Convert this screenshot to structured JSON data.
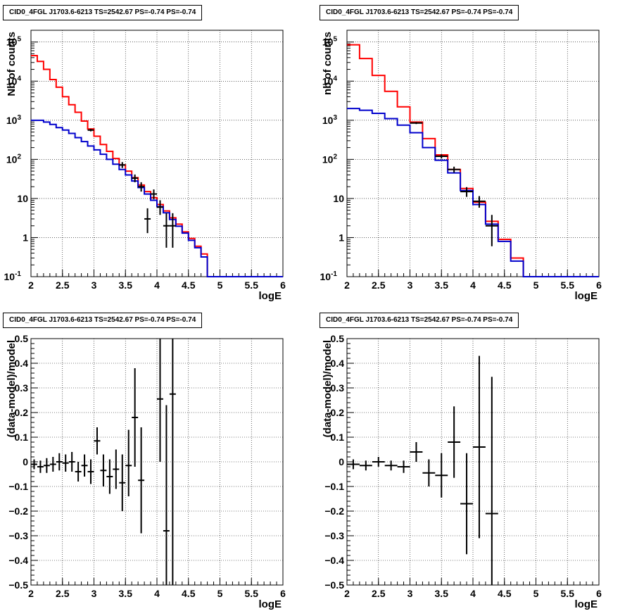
{
  "panels": [
    {
      "id": "counts-left",
      "title": "CID0_4FGL J1703.6-6213 TS=2542.67 PS=-0.74 PS=-0.74",
      "chart_data": {
        "type": "line",
        "yscale": "log",
        "xlabel": "logE",
        "ylabel": "Nb of counts",
        "xlim": [
          2,
          6
        ],
        "ylim": [
          0.1,
          200000
        ],
        "grid": true,
        "x_ticks": [
          "2",
          "2.5",
          "3",
          "3.5",
          "4",
          "4.5",
          "5",
          "5.5",
          "6"
        ],
        "y_ticks": [
          {
            "v": 0.1,
            "b": "10",
            "e": "-1"
          },
          {
            "v": 1,
            "b": "1",
            "e": ""
          },
          {
            "v": 10,
            "b": "10",
            "e": ""
          },
          {
            "v": 100,
            "b": "10",
            "e": "2"
          },
          {
            "v": 1000,
            "b": "10",
            "e": "3"
          },
          {
            "v": 10000,
            "b": "10",
            "e": "4"
          },
          {
            "v": 100000,
            "b": "10",
            "e": "5"
          }
        ],
        "step_width": 0.1,
        "series": [
          {
            "color": "#ff0000",
            "x": [
              2.0,
              2.1,
              2.2,
              2.3,
              2.4,
              2.5,
              2.6,
              2.7,
              2.8,
              2.9,
              3.0,
              3.1,
              3.2,
              3.3,
              3.4,
              3.5,
              3.6,
              3.7,
              3.8,
              3.9,
              4.0,
              4.1,
              4.2,
              4.3,
              4.4,
              4.5,
              4.6,
              4.7,
              4.8,
              4.9,
              5.0,
              5.1,
              5.2,
              5.3,
              5.4,
              5.5,
              5.6,
              5.7,
              5.8,
              5.9
            ],
            "y": [
              45000,
              32000,
              20000,
              11000,
              7000,
              4000,
              2500,
              1600,
              950,
              600,
              390,
              240,
              160,
              105,
              72,
              50,
              34,
              22,
              15,
              10.5,
              7,
              4.8,
              3.2,
              2.2,
              1.4,
              0.95,
              0.6,
              0.38,
              0.1,
              0.1,
              0.1,
              0.1,
              0.1,
              0.1,
              0.1,
              0.1,
              0.1,
              0.1,
              0.1,
              0.1
            ]
          },
          {
            "color": "#0000cc",
            "x": [
              2.0,
              2.1,
              2.2,
              2.3,
              2.4,
              2.5,
              2.6,
              2.7,
              2.8,
              2.9,
              3.0,
              3.1,
              3.2,
              3.3,
              3.4,
              3.5,
              3.6,
              3.7,
              3.8,
              3.9,
              4.0,
              4.1,
              4.2,
              4.3,
              4.4,
              4.5,
              4.6,
              4.7,
              4.8,
              4.9,
              5.0,
              5.1,
              5.2,
              5.3,
              5.4,
              5.5,
              5.6,
              5.7,
              5.8,
              5.9
            ],
            "y": [
              1000,
              1000,
              900,
              780,
              650,
              560,
              460,
              360,
              285,
              220,
              175,
              135,
              100,
              75,
              55,
              40,
              28,
              19,
              13,
              9,
              6.2,
              4.3,
              2.9,
              1.95,
              1.3,
              0.85,
              0.55,
              0.32,
              0.1,
              0.1,
              0.1,
              0.1,
              0.1,
              0.1,
              0.1,
              0.1,
              0.1,
              0.1,
              0.1,
              0.1
            ]
          }
        ],
        "points": [
          {
            "x": 2.95,
            "y": 560,
            "lo": 520,
            "hi": 600
          },
          {
            "x": 3.45,
            "y": 72,
            "lo": 60,
            "hi": 85
          },
          {
            "x": 3.65,
            "y": 33,
            "lo": 26,
            "hi": 41
          },
          {
            "x": 3.75,
            "y": 20,
            "lo": 15,
            "hi": 26
          },
          {
            "x": 3.85,
            "y": 3,
            "lo": 1.3,
            "hi": 5.6
          },
          {
            "x": 3.95,
            "y": 13,
            "lo": 9.5,
            "hi": 17
          },
          {
            "x": 4.05,
            "y": 6,
            "lo": 3.8,
            "hi": 9
          },
          {
            "x": 4.15,
            "y": 2,
            "lo": 0.55,
            "hi": 4.2
          },
          {
            "x": 4.25,
            "y": 2,
            "lo": 0.55,
            "hi": 4.2
          }
        ],
        "point_halfwidth": 0.05
      }
    },
    {
      "id": "counts-right",
      "title": "CID0_4FGL J1703.6-6213 TS=2542.67 PS=-0.74 PS=-0.74",
      "chart_data": {
        "type": "line",
        "yscale": "log",
        "xlabel": "logE",
        "ylabel": "nb of counts",
        "xlim": [
          2,
          6
        ],
        "ylim": [
          0.1,
          200000
        ],
        "grid": true,
        "x_ticks": [
          "2",
          "2.5",
          "3",
          "3.5",
          "4",
          "4.5",
          "5",
          "5.5",
          "6"
        ],
        "y_ticks": [
          {
            "v": 0.1,
            "b": "10",
            "e": "-1"
          },
          {
            "v": 1,
            "b": "1",
            "e": ""
          },
          {
            "v": 10,
            "b": "10",
            "e": ""
          },
          {
            "v": 100,
            "b": "10",
            "e": "2"
          },
          {
            "v": 1000,
            "b": "10",
            "e": "3"
          },
          {
            "v": 10000,
            "b": "10",
            "e": "4"
          },
          {
            "v": 100000,
            "b": "10",
            "e": "5"
          }
        ],
        "step_width": 0.2,
        "series": [
          {
            "color": "#ff0000",
            "x": [
              2.0,
              2.2,
              2.4,
              2.6,
              2.8,
              3.0,
              3.2,
              3.4,
              3.6,
              3.8,
              4.0,
              4.2,
              4.4,
              4.6,
              4.8,
              5.0,
              5.2,
              5.4,
              5.6,
              5.8
            ],
            "y": [
              85000,
              38000,
              14000,
              5500,
              2200,
              900,
              340,
              130,
              55,
              18,
              8,
              2.6,
              0.9,
              0.3,
              0.1,
              0.1,
              0.1,
              0.1,
              0.1,
              0.1
            ]
          },
          {
            "color": "#0000cc",
            "x": [
              2.0,
              2.2,
              2.4,
              2.6,
              2.8,
              3.0,
              3.2,
              3.4,
              3.6,
              3.8,
              4.0,
              4.2,
              4.4,
              4.6,
              4.8,
              5.0,
              5.2,
              5.4,
              5.6,
              5.8
            ],
            "y": [
              2000,
              1800,
              1500,
              1100,
              750,
              480,
              200,
              95,
              45,
              16,
              7,
              2.2,
              0.8,
              0.25,
              0.1,
              0.1,
              0.1,
              0.1,
              0.1,
              0.1
            ]
          }
        ],
        "points": [
          {
            "x": 3.1,
            "y": 850,
            "lo": 800,
            "hi": 900
          },
          {
            "x": 3.5,
            "y": 120,
            "lo": 105,
            "hi": 135
          },
          {
            "x": 3.7,
            "y": 55,
            "lo": 46,
            "hi": 65
          },
          {
            "x": 3.9,
            "y": 15,
            "lo": 11,
            "hi": 19.5
          },
          {
            "x": 4.1,
            "y": 8.5,
            "lo": 5.8,
            "hi": 11.5
          },
          {
            "x": 4.3,
            "y": 2,
            "lo": 0.6,
            "hi": 3.8
          }
        ],
        "point_halfwidth": 0.1
      }
    },
    {
      "id": "residual-left",
      "title": "CID0_4FGL J1703.6-6213 TS=2542.67 PS=-0.74 PS=-0.74",
      "chart_data": {
        "type": "scatter",
        "yscale": "linear",
        "xlabel": "logE",
        "ylabel": "(data-model)/model",
        "xlim": [
          2,
          6
        ],
        "ylim": [
          -0.5,
          0.5
        ],
        "grid": true,
        "x_ticks": [
          "2",
          "2.5",
          "3",
          "3.5",
          "4",
          "4.5",
          "5",
          "5.5",
          "6"
        ],
        "y_ticks": [
          {
            "v": -0.5,
            "b": "−0.5",
            "e": ""
          },
          {
            "v": -0.4,
            "b": "−0.4",
            "e": ""
          },
          {
            "v": -0.3,
            "b": "−0.3",
            "e": ""
          },
          {
            "v": -0.2,
            "b": "−0.2",
            "e": ""
          },
          {
            "v": -0.1,
            "b": "−0.1",
            "e": ""
          },
          {
            "v": 0,
            "b": "0",
            "e": ""
          },
          {
            "v": 0.1,
            "b": "0.1",
            "e": ""
          },
          {
            "v": 0.2,
            "b": "0.2",
            "e": ""
          },
          {
            "v": 0.3,
            "b": "0.3",
            "e": ""
          },
          {
            "v": 0.4,
            "b": "0.4",
            "e": ""
          },
          {
            "v": 0.5,
            "b": "0.5",
            "e": ""
          }
        ],
        "series": [],
        "points": [
          {
            "x": 2.05,
            "y": -0.01,
            "lo": -0.03,
            "hi": 0.01
          },
          {
            "x": 2.15,
            "y": -0.02,
            "lo": -0.045,
            "hi": 0.005
          },
          {
            "x": 2.25,
            "y": -0.015,
            "lo": -0.045,
            "hi": 0.015
          },
          {
            "x": 2.35,
            "y": -0.01,
            "lo": -0.04,
            "hi": 0.02
          },
          {
            "x": 2.45,
            "y": 0.0,
            "lo": -0.035,
            "hi": 0.035
          },
          {
            "x": 2.55,
            "y": -0.005,
            "lo": -0.04,
            "hi": 0.03
          },
          {
            "x": 2.65,
            "y": 0.0,
            "lo": -0.04,
            "hi": 0.04
          },
          {
            "x": 2.75,
            "y": -0.04,
            "lo": -0.08,
            "hi": 0.0
          },
          {
            "x": 2.85,
            "y": -0.015,
            "lo": -0.06,
            "hi": 0.03
          },
          {
            "x": 2.95,
            "y": -0.04,
            "lo": -0.09,
            "hi": 0.01
          },
          {
            "x": 3.05,
            "y": 0.085,
            "lo": 0.03,
            "hi": 0.14
          },
          {
            "x": 3.15,
            "y": -0.035,
            "lo": -0.1,
            "hi": 0.03
          },
          {
            "x": 3.25,
            "y": -0.06,
            "lo": -0.13,
            "hi": 0.01
          },
          {
            "x": 3.35,
            "y": -0.03,
            "lo": -0.11,
            "hi": 0.05
          },
          {
            "x": 3.45,
            "y": -0.085,
            "lo": -0.2,
            "hi": 0.03
          },
          {
            "x": 3.55,
            "y": -0.015,
            "lo": -0.14,
            "hi": 0.13
          },
          {
            "x": 3.65,
            "y": 0.18,
            "lo": -0.02,
            "hi": 0.38
          },
          {
            "x": 3.75,
            "y": -0.075,
            "lo": -0.29,
            "hi": 0.14
          },
          {
            "x": 4.05,
            "y": 0.255,
            "lo": 0.0,
            "hi": 0.5
          },
          {
            "x": 4.15,
            "y": -0.28,
            "lo": -0.5,
            "hi": 0.23
          },
          {
            "x": 4.25,
            "y": 0.275,
            "lo": -0.5,
            "hi": 0.5
          }
        ],
        "point_halfwidth": 0.05
      }
    },
    {
      "id": "residual-right",
      "title": "CID0_4FGL J1703.6-6213 TS=2542.67 PS=-0.74 PS=-0.74",
      "chart_data": {
        "type": "scatter",
        "yscale": "linear",
        "xlabel": "logE",
        "ylabel": "(data-model)/model",
        "xlim": [
          2,
          6
        ],
        "ylim": [
          -0.5,
          0.5
        ],
        "grid": true,
        "x_ticks": [
          "2",
          "2.5",
          "3",
          "3.5",
          "4",
          "4.5",
          "5",
          "5.5",
          "6"
        ],
        "y_ticks": [
          {
            "v": -0.5,
            "b": "−0.5",
            "e": ""
          },
          {
            "v": -0.4,
            "b": "−0.4",
            "e": ""
          },
          {
            "v": -0.3,
            "b": "−0.3",
            "e": ""
          },
          {
            "v": -0.2,
            "b": "−0.2",
            "e": ""
          },
          {
            "v": -0.1,
            "b": "−0.1",
            "e": ""
          },
          {
            "v": 0,
            "b": "0",
            "e": ""
          },
          {
            "v": 0.1,
            "b": "0.1",
            "e": ""
          },
          {
            "v": 0.2,
            "b": "0.2",
            "e": ""
          },
          {
            "v": 0.3,
            "b": "0.3",
            "e": ""
          },
          {
            "v": 0.4,
            "b": "0.4",
            "e": ""
          },
          {
            "v": 0.5,
            "b": "0.5",
            "e": ""
          }
        ],
        "series": [],
        "points": [
          {
            "x": 2.1,
            "y": -0.01,
            "lo": -0.03,
            "hi": 0.01
          },
          {
            "x": 2.3,
            "y": -0.015,
            "lo": -0.035,
            "hi": 0.005
          },
          {
            "x": 2.5,
            "y": 0.0,
            "lo": -0.02,
            "hi": 0.02
          },
          {
            "x": 2.7,
            "y": -0.015,
            "lo": -0.035,
            "hi": 0.005
          },
          {
            "x": 2.9,
            "y": -0.02,
            "lo": -0.045,
            "hi": 0.005
          },
          {
            "x": 3.1,
            "y": 0.04,
            "lo": 0.0,
            "hi": 0.08
          },
          {
            "x": 3.3,
            "y": -0.045,
            "lo": -0.1,
            "hi": 0.01
          },
          {
            "x": 3.5,
            "y": -0.055,
            "lo": -0.145,
            "hi": 0.035
          },
          {
            "x": 3.7,
            "y": 0.08,
            "lo": -0.065,
            "hi": 0.225
          },
          {
            "x": 3.9,
            "y": -0.17,
            "lo": -0.375,
            "hi": 0.035
          },
          {
            "x": 4.1,
            "y": 0.06,
            "lo": -0.31,
            "hi": 0.43
          },
          {
            "x": 4.3,
            "y": -0.21,
            "lo": -0.5,
            "hi": 0.345
          }
        ],
        "point_halfwidth": 0.1
      }
    }
  ]
}
